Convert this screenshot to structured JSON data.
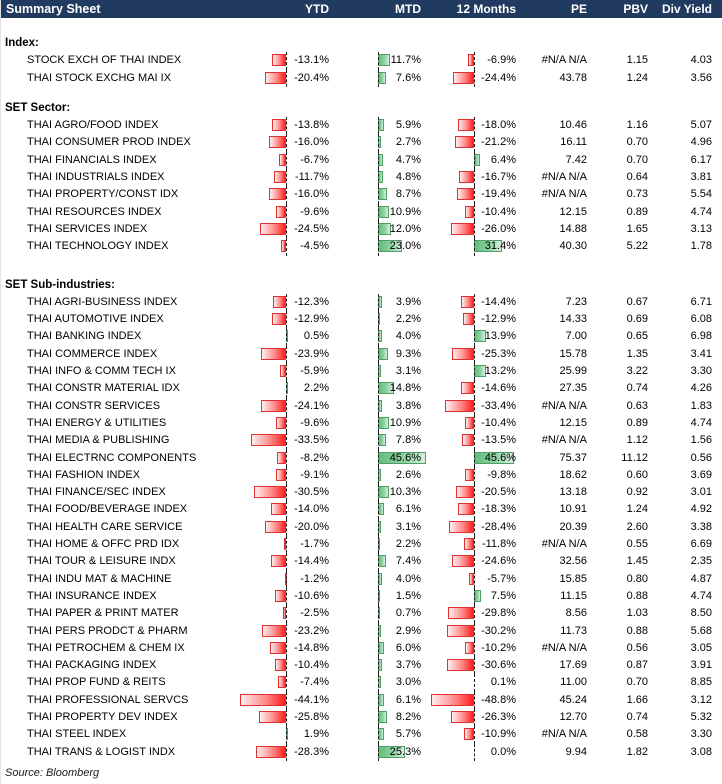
{
  "header": {
    "title": "Summary Sheet",
    "columns": [
      "YTD",
      "MTD",
      "12 Months",
      "PE",
      "PBV",
      "Div Yield"
    ]
  },
  "chart_data": {
    "type": "table",
    "title": "Summary Sheet",
    "columns": [
      "YTD",
      "MTD",
      "12 Months",
      "PE",
      "PBV",
      "Div Yield"
    ],
    "bar_columns_note": "YTD, MTD and 12 Months cells contain in-cell data bars; negative=red extending left of dashed zero axis, positive=green extending right",
    "sections": [
      {
        "title": "Index:",
        "rows": [
          {
            "name": "STOCK EXCH OF THAI INDEX",
            "ytd": -13.1,
            "mtd": 11.7,
            "m12": -6.9,
            "pe": "#N/A N/A",
            "pbv": 1.15,
            "div_yield": 4.03
          },
          {
            "name": "THAI STOCK EXCHG MAI IX",
            "ytd": -20.4,
            "mtd": 7.6,
            "m12": -24.4,
            "pe": 43.78,
            "pbv": 1.24,
            "div_yield": 3.56
          }
        ]
      },
      {
        "title": "SET Sector:",
        "rows": [
          {
            "name": "THAI AGRO/FOOD INDEX",
            "ytd": -13.8,
            "mtd": 5.9,
            "m12": -18.0,
            "pe": 10.46,
            "pbv": 1.16,
            "div_yield": 5.07
          },
          {
            "name": "THAI CONSUMER PROD INDEX",
            "ytd": -16.0,
            "mtd": 2.7,
            "m12": -21.2,
            "pe": 16.11,
            "pbv": 0.7,
            "div_yield": 4.96
          },
          {
            "name": "THAI FINANCIALS INDEX",
            "ytd": -6.7,
            "mtd": 4.7,
            "m12": 6.4,
            "pe": 7.42,
            "pbv": 0.7,
            "div_yield": 6.17
          },
          {
            "name": "THAI INDUSTRIALS INDEX",
            "ytd": -11.7,
            "mtd": 4.8,
            "m12": -16.7,
            "pe": "#N/A N/A",
            "pbv": 0.64,
            "div_yield": 3.81
          },
          {
            "name": "THAI PROPERTY/CONST IDX",
            "ytd": -16.0,
            "mtd": 8.7,
            "m12": -19.4,
            "pe": "#N/A N/A",
            "pbv": 0.73,
            "div_yield": 5.54
          },
          {
            "name": "THAI RESOURCES INDEX",
            "ytd": -9.6,
            "mtd": 10.9,
            "m12": -10.4,
            "pe": 12.15,
            "pbv": 0.89,
            "div_yield": 4.74
          },
          {
            "name": "THAI SERVICES INDEX",
            "ytd": -24.5,
            "mtd": 12.0,
            "m12": -26.0,
            "pe": 14.88,
            "pbv": 1.65,
            "div_yield": 3.13
          },
          {
            "name": "THAI TECHNOLOGY INDEX",
            "ytd": -4.5,
            "mtd": 23.0,
            "m12": 31.4,
            "pe": 40.3,
            "pbv": 5.22,
            "div_yield": 1.78
          }
        ]
      },
      {
        "title": "SET Sub-industries:",
        "rows": [
          {
            "name": "THAI AGRI-BUSINESS INDEX",
            "ytd": -12.3,
            "mtd": 3.9,
            "m12": -14.4,
            "pe": 7.23,
            "pbv": 0.67,
            "div_yield": 6.71
          },
          {
            "name": "THAI AUTOMOTIVE INDEX",
            "ytd": -12.9,
            "mtd": 2.2,
            "m12": -12.9,
            "pe": 14.33,
            "pbv": 0.69,
            "div_yield": 6.08
          },
          {
            "name": "THAI BANKING INDEX",
            "ytd": 0.5,
            "mtd": 4.0,
            "m12": 13.9,
            "pe": 7.0,
            "pbv": 0.65,
            "div_yield": 6.98
          },
          {
            "name": "THAI COMMERCE INDEX",
            "ytd": -23.9,
            "mtd": 9.3,
            "m12": -25.3,
            "pe": 15.78,
            "pbv": 1.35,
            "div_yield": 3.41
          },
          {
            "name": "THAI INFO & COMM TECH IX",
            "ytd": -5.9,
            "mtd": 3.1,
            "m12": 13.2,
            "pe": 25.99,
            "pbv": 3.22,
            "div_yield": 3.3
          },
          {
            "name": "THAI CONSTR MATERIAL IDX",
            "ytd": 2.2,
            "mtd": 14.8,
            "m12": -14.6,
            "pe": 27.35,
            "pbv": 0.74,
            "div_yield": 4.26
          },
          {
            "name": "THAI CONSTR SERVICES",
            "ytd": -24.1,
            "mtd": 3.8,
            "m12": -33.4,
            "pe": "#N/A N/A",
            "pbv": 0.63,
            "div_yield": 1.83
          },
          {
            "name": "THAI ENERGY & UTILITIES",
            "ytd": -9.6,
            "mtd": 10.9,
            "m12": -10.4,
            "pe": 12.15,
            "pbv": 0.89,
            "div_yield": 4.74
          },
          {
            "name": "THAI MEDIA & PUBLISHING",
            "ytd": -33.5,
            "mtd": 7.8,
            "m12": -13.5,
            "pe": "#N/A N/A",
            "pbv": 1.12,
            "div_yield": 1.56
          },
          {
            "name": "THAI ELECTRNC COMPONENTS",
            "ytd": -8.2,
            "mtd": 45.6,
            "m12": 45.6,
            "pe": 75.37,
            "pbv": 11.12,
            "div_yield": 0.56
          },
          {
            "name": "THAI FASHION INDEX",
            "ytd": -9.1,
            "mtd": 2.6,
            "m12": -9.8,
            "pe": 18.62,
            "pbv": 0.6,
            "div_yield": 3.69
          },
          {
            "name": "THAI FINANCE/SEC INDEX",
            "ytd": -30.5,
            "mtd": 10.3,
            "m12": -20.5,
            "pe": 13.18,
            "pbv": 0.92,
            "div_yield": 3.01
          },
          {
            "name": "THAI FOOD/BEVERAGE INDEX",
            "ytd": -14.0,
            "mtd": 6.1,
            "m12": -18.3,
            "pe": 10.91,
            "pbv": 1.24,
            "div_yield": 4.92
          },
          {
            "name": "THAI HEALTH CARE SERVICE",
            "ytd": -20.0,
            "mtd": 3.1,
            "m12": -28.4,
            "pe": 20.39,
            "pbv": 2.6,
            "div_yield": 3.38
          },
          {
            "name": "THAI HOME & OFFC PRD IDX",
            "ytd": -1.7,
            "mtd": 2.2,
            "m12": -11.8,
            "pe": "#N/A N/A",
            "pbv": 0.55,
            "div_yield": 6.69
          },
          {
            "name": "THAI TOUR & LEISURE INDX",
            "ytd": -14.4,
            "mtd": 7.4,
            "m12": -24.6,
            "pe": 32.56,
            "pbv": 1.45,
            "div_yield": 2.35
          },
          {
            "name": "THAI INDU MAT & MACHINE",
            "ytd": -1.2,
            "mtd": 4.0,
            "m12": -5.7,
            "pe": 15.85,
            "pbv": 0.8,
            "div_yield": 4.87
          },
          {
            "name": "THAI INSURANCE INDEX",
            "ytd": -10.6,
            "mtd": 1.5,
            "m12": 7.5,
            "pe": 11.15,
            "pbv": 0.88,
            "div_yield": 4.74
          },
          {
            "name": "THAI PAPER & PRINT MATER",
            "ytd": -2.5,
            "mtd": 0.7,
            "m12": -29.8,
            "pe": 8.56,
            "pbv": 1.03,
            "div_yield": 8.5
          },
          {
            "name": "THAI PERS PRODCT & PHARM",
            "ytd": -23.2,
            "mtd": 2.9,
            "m12": -30.2,
            "pe": 11.73,
            "pbv": 0.88,
            "div_yield": 5.68
          },
          {
            "name": "THAI PETROCHEM & CHEM IX",
            "ytd": -14.8,
            "mtd": 6.0,
            "m12": -10.2,
            "pe": "#N/A N/A",
            "pbv": 0.56,
            "div_yield": 3.05
          },
          {
            "name": "THAI PACKAGING INDEX",
            "ytd": -10.4,
            "mtd": 3.7,
            "m12": -30.6,
            "pe": 17.69,
            "pbv": 0.87,
            "div_yield": 3.91
          },
          {
            "name": "THAI PROP FUND & REITS",
            "ytd": -7.4,
            "mtd": 3.0,
            "m12": 0.1,
            "pe": 11.0,
            "pbv": 0.7,
            "div_yield": 8.85
          },
          {
            "name": "THAI PROFESSIONAL SERVCS",
            "ytd": -44.1,
            "mtd": 6.1,
            "m12": -48.8,
            "pe": 45.24,
            "pbv": 1.66,
            "div_yield": 3.12
          },
          {
            "name": "THAI PROPERTY DEV INDEX",
            "ytd": -25.8,
            "mtd": 8.2,
            "m12": -26.3,
            "pe": 12.7,
            "pbv": 0.74,
            "div_yield": 5.32
          },
          {
            "name": "THAI STEEL INDEX",
            "ytd": 1.9,
            "mtd": 5.7,
            "m12": -10.9,
            "pe": "#N/A N/A",
            "pbv": 0.58,
            "div_yield": 3.3
          },
          {
            "name": "THAI TRANS & LOGIST INDX",
            "ytd": -28.3,
            "mtd": 25.3,
            "m12": 0.0,
            "pe": 9.94,
            "pbv": 1.82,
            "div_yield": 3.08
          }
        ]
      }
    ]
  },
  "footer": {
    "source": "Source: Bloomberg"
  },
  "colors": {
    "header_bg": "#213A5F",
    "header_text": "#FFFFFF",
    "bar_negative_border": "#E03030",
    "bar_negative_fill": "#FF1F1F",
    "bar_positive_border": "#4E9E66",
    "bar_positive_fill": "#63BE7B"
  }
}
